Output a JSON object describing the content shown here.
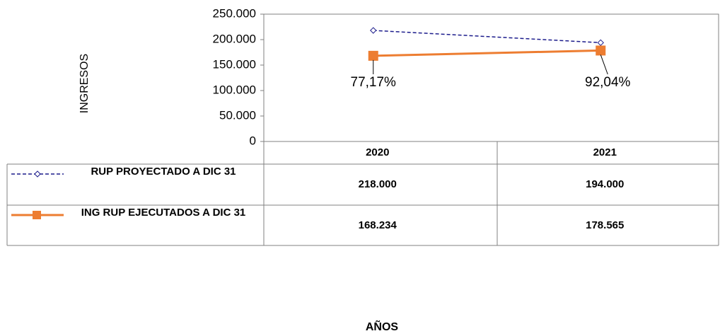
{
  "chart_data": {
    "type": "line",
    "y_label": "INGRESOS",
    "x_label": "AÑOS",
    "categories": [
      "2020",
      "2021"
    ],
    "series": [
      {
        "name": "RUP PROYECTADO A DIC 31",
        "color": "#1c1c8c",
        "values": [
          218000,
          194000
        ],
        "value_labels": [
          "218.000",
          "194.000"
        ]
      },
      {
        "name": "ING RUP EJECUTADOS A DIC 31",
        "color": "#ed7d31",
        "values": [
          168234,
          178565
        ],
        "value_labels": [
          "168.234",
          "178.565"
        ],
        "percent_labels": [
          "77,17%",
          "92,04%"
        ]
      }
    ],
    "ylim": [
      0,
      250000
    ],
    "yticks": [
      0,
      {
        "value": 50000,
        "label": "50.000"
      },
      {
        "value": 100000,
        "label": "100.000"
      },
      {
        "value": 150000,
        "label": "150.000"
      },
      {
        "value": 200000,
        "label": "200.000"
      },
      {
        "value": 250000,
        "label": "250.000"
      }
    ],
    "grid": false
  }
}
